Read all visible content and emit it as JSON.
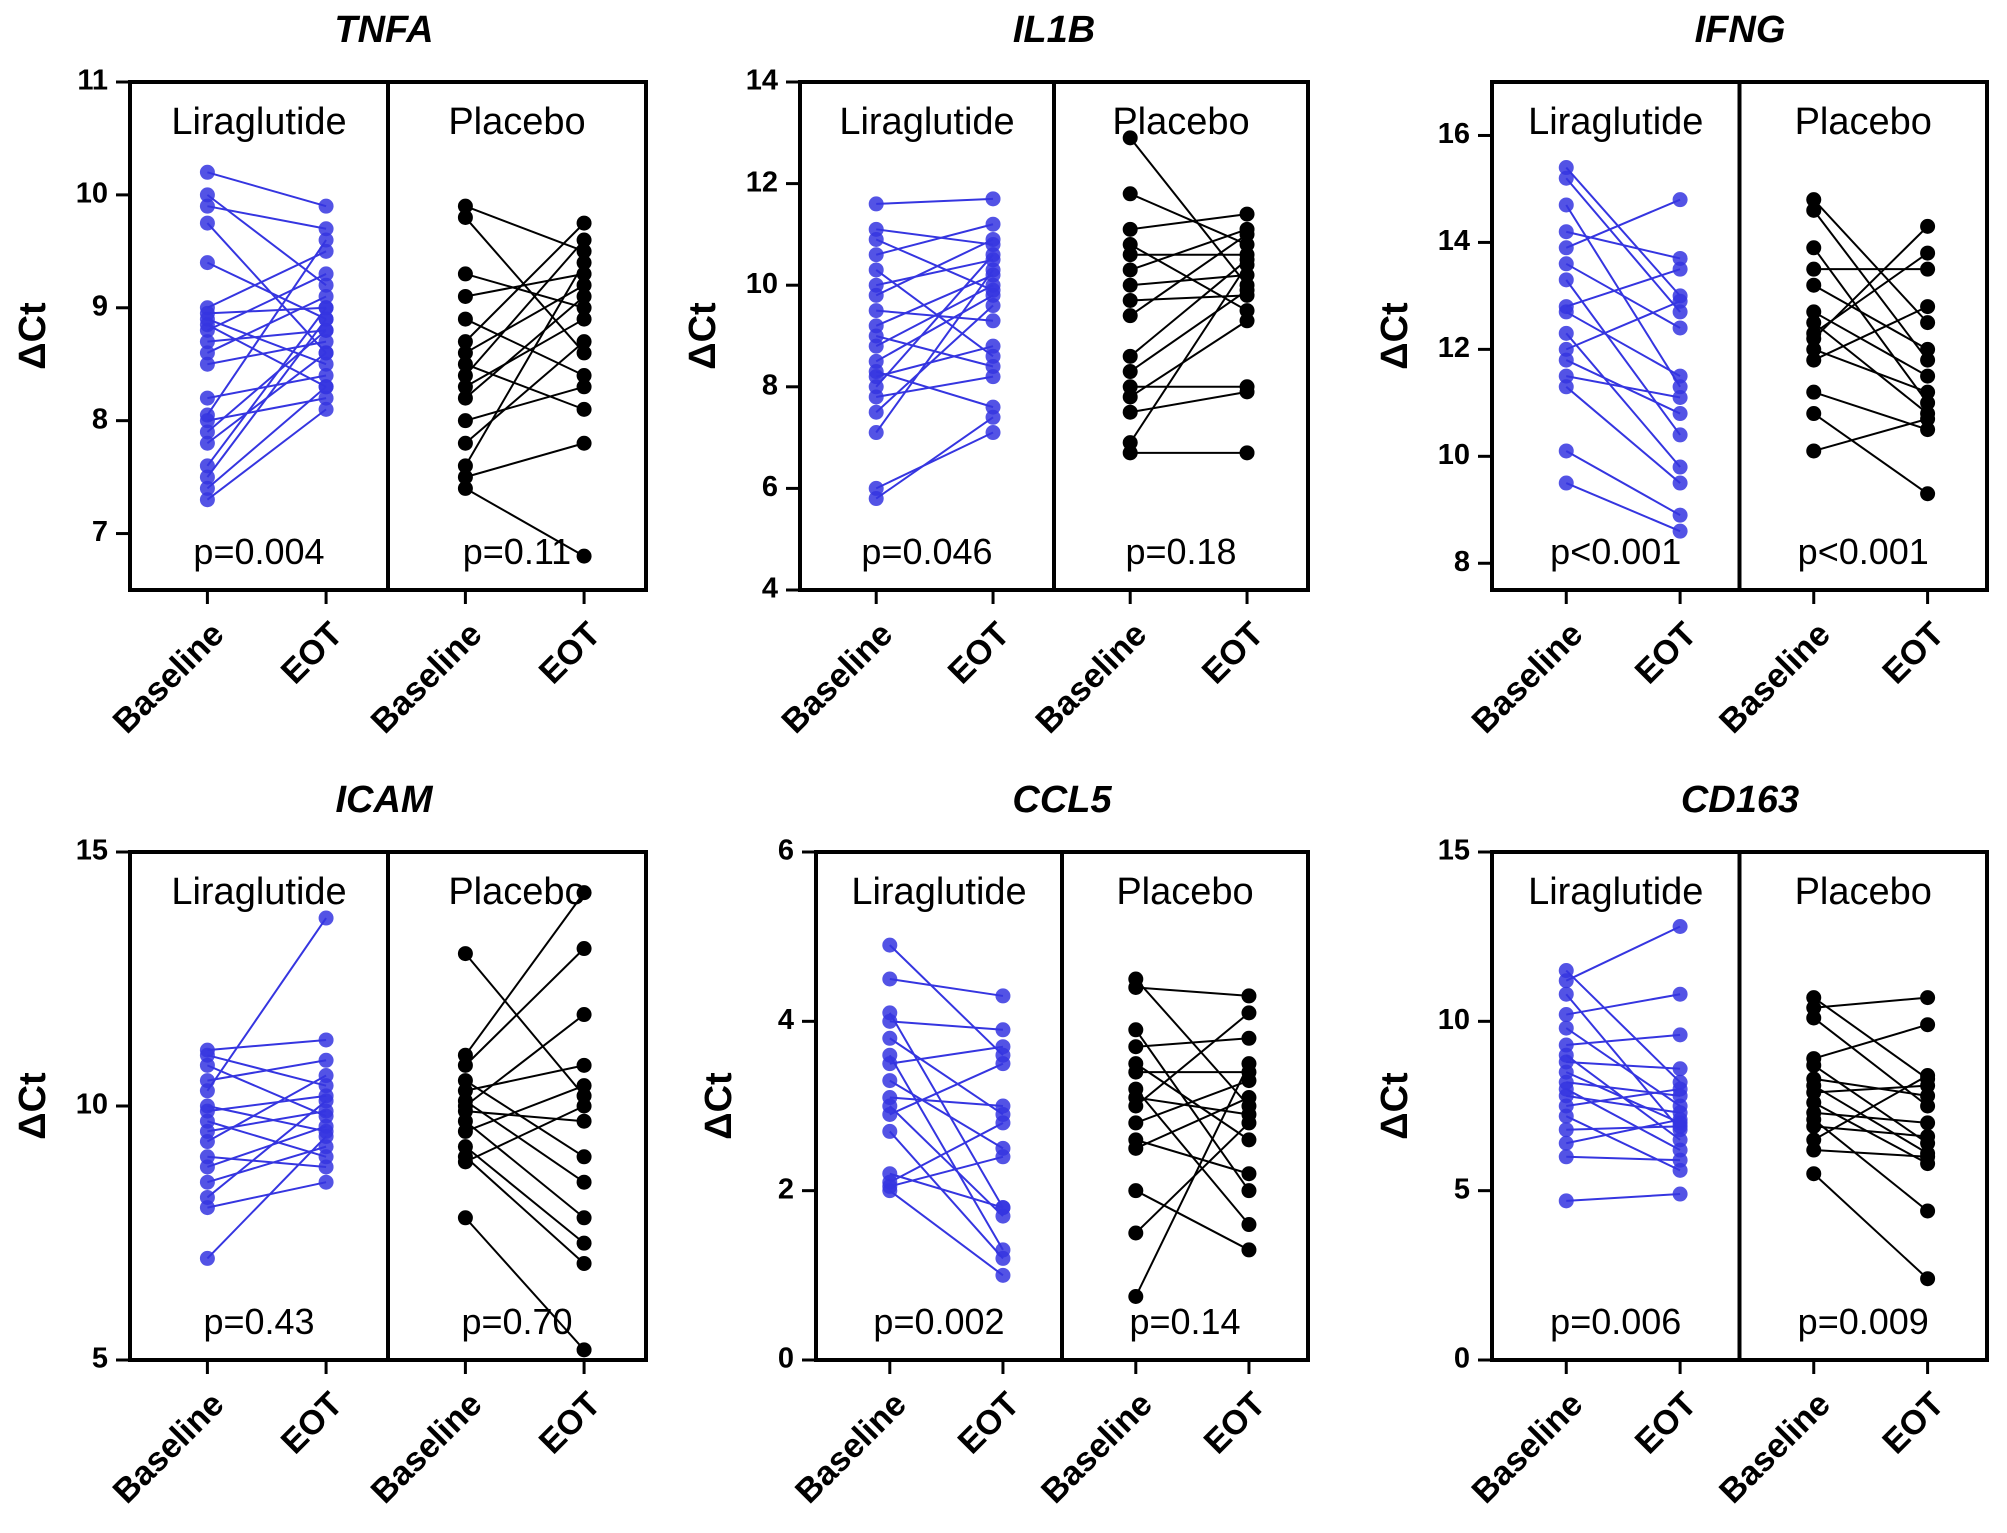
{
  "colors": {
    "liraglutide": "#3535e0",
    "placebo": "#000000",
    "frame": "#000000"
  },
  "chart_data": [
    {
      "type": "paired-dot",
      "title": "TNFA",
      "ylabel": "ΔCt",
      "ylim": [
        6.5,
        11
      ],
      "yticks": [
        "7",
        "8",
        "9",
        "10",
        "11"
      ],
      "groups": [
        {
          "name": "Liraglutide",
          "pvalue": "p=0.004",
          "xlabels": [
            "Baseline",
            "EOT"
          ],
          "pairs": [
            [
              10.2,
              9.9
            ],
            [
              10.0,
              9.2
            ],
            [
              9.9,
              9.7
            ],
            [
              9.75,
              8.6
            ],
            [
              9.4,
              8.9
            ],
            [
              9.0,
              9.5
            ],
            [
              8.95,
              9.0
            ],
            [
              8.9,
              8.5
            ],
            [
              8.85,
              8.3
            ],
            [
              8.8,
              9.3
            ],
            [
              8.7,
              8.8
            ],
            [
              8.6,
              9.1
            ],
            [
              8.5,
              8.7
            ],
            [
              8.2,
              8.4
            ],
            [
              8.05,
              9.6
            ],
            [
              8.0,
              8.2
            ],
            [
              7.9,
              8.8
            ],
            [
              7.8,
              8.6
            ],
            [
              7.6,
              9.0
            ],
            [
              7.5,
              8.9
            ],
            [
              7.4,
              8.3
            ],
            [
              7.3,
              8.1
            ]
          ]
        },
        {
          "name": "Placebo",
          "pvalue": "p=0.11",
          "xlabels": [
            "Baseline",
            "EOT"
          ],
          "pairs": [
            [
              9.9,
              9.5
            ],
            [
              9.8,
              8.6
            ],
            [
              9.3,
              9.0
            ],
            [
              9.1,
              9.3
            ],
            [
              8.9,
              8.4
            ],
            [
              8.7,
              9.75
            ],
            [
              8.6,
              9.2
            ],
            [
              8.5,
              8.1
            ],
            [
              8.4,
              9.6
            ],
            [
              8.3,
              8.9
            ],
            [
              8.2,
              9.1
            ],
            [
              8.0,
              8.3
            ],
            [
              7.8,
              8.7
            ],
            [
              7.6,
              9.4
            ],
            [
              7.5,
              7.8
            ],
            [
              7.4,
              6.8
            ]
          ]
        }
      ]
    },
    {
      "type": "paired-dot",
      "title": "IL1B",
      "ylabel": "ΔCt",
      "ylim": [
        4,
        14
      ],
      "yticks": [
        "4",
        "6",
        "8",
        "10",
        "12",
        "14"
      ],
      "groups": [
        {
          "name": "Liraglutide",
          "pvalue": "p=0.046",
          "xlabels": [
            "Baseline",
            "EOT"
          ],
          "pairs": [
            [
              11.6,
              11.7
            ],
            [
              11.1,
              10.8
            ],
            [
              10.9,
              9.9
            ],
            [
              10.6,
              11.2
            ],
            [
              10.3,
              8.6
            ],
            [
              10.0,
              10.5
            ],
            [
              9.8,
              10.9
            ],
            [
              9.5,
              9.3
            ],
            [
              9.2,
              10.2
            ],
            [
              9.0,
              8.4
            ],
            [
              8.8,
              10.0
            ],
            [
              8.5,
              9.8
            ],
            [
              8.3,
              7.6
            ],
            [
              8.2,
              8.8
            ],
            [
              8.0,
              10.6
            ],
            [
              7.8,
              8.2
            ],
            [
              7.5,
              9.6
            ],
            [
              7.1,
              10.3
            ],
            [
              6.0,
              7.1
            ],
            [
              5.8,
              7.4
            ]
          ]
        },
        {
          "name": "Placebo",
          "pvalue": "p=0.18",
          "xlabels": [
            "Baseline",
            "EOT"
          ],
          "pairs": [
            [
              12.9,
              10.0
            ],
            [
              11.8,
              10.8
            ],
            [
              11.1,
              11.4
            ],
            [
              10.8,
              9.5
            ],
            [
              10.6,
              10.6
            ],
            [
              10.3,
              11.1
            ],
            [
              10.0,
              10.2
            ],
            [
              9.7,
              9.8
            ],
            [
              9.4,
              11.0
            ],
            [
              8.6,
              10.5
            ],
            [
              8.3,
              9.9
            ],
            [
              8.0,
              8.0
            ],
            [
              7.8,
              9.3
            ],
            [
              7.5,
              7.9
            ],
            [
              6.9,
              10.4
            ],
            [
              6.7,
              6.7
            ]
          ]
        }
      ]
    },
    {
      "type": "paired-dot",
      "title": "IFNG",
      "ylabel": "ΔCt",
      "ylim": [
        7.5,
        17
      ],
      "yticks": [
        "8",
        "10",
        "12",
        "14",
        "16"
      ],
      "groups": [
        {
          "name": "Liraglutide",
          "pvalue": "p<0.001",
          "xlabels": [
            "Baseline",
            "EOT"
          ],
          "pairs": [
            [
              15.4,
              13.0
            ],
            [
              15.2,
              12.7
            ],
            [
              14.7,
              11.3
            ],
            [
              13.9,
              14.8
            ],
            [
              13.6,
              12.4
            ],
            [
              13.3,
              10.4
            ],
            [
              12.8,
              13.5
            ],
            [
              12.7,
              11.5
            ],
            [
              12.3,
              9.8
            ],
            [
              12.0,
              12.9
            ],
            [
              11.8,
              10.8
            ],
            [
              11.5,
              11.1
            ],
            [
              11.3,
              9.5
            ],
            [
              10.1,
              8.9
            ],
            [
              9.5,
              8.6
            ],
            [
              14.2,
              13.7
            ]
          ]
        },
        {
          "name": "Placebo",
          "pvalue": "p<0.001",
          "xlabels": [
            "Baseline",
            "EOT"
          ],
          "pairs": [
            [
              14.8,
              12.5
            ],
            [
              14.6,
              11.8
            ],
            [
              13.9,
              11.0
            ],
            [
              13.5,
              13.5
            ],
            [
              13.2,
              12.0
            ],
            [
              12.7,
              11.5
            ],
            [
              12.5,
              10.8
            ],
            [
              12.3,
              13.8
            ],
            [
              12.0,
              11.2
            ],
            [
              11.8,
              12.8
            ],
            [
              11.2,
              10.5
            ],
            [
              10.8,
              9.3
            ],
            [
              10.1,
              10.7
            ],
            [
              12.2,
              14.3
            ]
          ]
        }
      ]
    },
    {
      "type": "paired-dot",
      "title": "ICAM",
      "ylabel": "ΔCt",
      "ylim": [
        5,
        15
      ],
      "yticks": [
        "5",
        "10",
        "15"
      ],
      "groups": [
        {
          "name": "Liraglutide",
          "pvalue": "p=0.43",
          "xlabels": [
            "Baseline",
            "EOT"
          ],
          "pairs": [
            [
              11.1,
              11.3
            ],
            [
              11.0,
              10.4
            ],
            [
              10.8,
              9.8
            ],
            [
              10.5,
              10.9
            ],
            [
              10.3,
              13.7
            ],
            [
              10.0,
              9.5
            ],
            [
              9.9,
              10.2
            ],
            [
              9.7,
              9.0
            ],
            [
              9.5,
              9.9
            ],
            [
              9.3,
              10.6
            ],
            [
              9.0,
              8.8
            ],
            [
              8.8,
              9.6
            ],
            [
              8.5,
              9.2
            ],
            [
              8.2,
              10.1
            ],
            [
              8.0,
              8.5
            ],
            [
              7.0,
              9.4
            ]
          ]
        },
        {
          "name": "Placebo",
          "pvalue": "p=0.70",
          "xlabels": [
            "Baseline",
            "EOT"
          ],
          "pairs": [
            [
              13.0,
              10.2
            ],
            [
              11.0,
              14.2
            ],
            [
              10.8,
              13.1
            ],
            [
              10.5,
              9.0
            ],
            [
              10.3,
              10.8
            ],
            [
              10.1,
              8.5
            ],
            [
              10.0,
              11.8
            ],
            [
              9.9,
              9.7
            ],
            [
              9.7,
              7.8
            ],
            [
              9.5,
              10.4
            ],
            [
              9.2,
              7.3
            ],
            [
              9.0,
              6.9
            ],
            [
              8.9,
              10.0
            ],
            [
              7.8,
              5.2
            ]
          ]
        }
      ]
    },
    {
      "type": "paired-dot",
      "title": "CCL5",
      "ylabel": "ΔCt",
      "ylim": [
        0,
        6
      ],
      "yticks": [
        "0",
        "2",
        "4",
        "6"
      ],
      "groups": [
        {
          "name": "Liraglutide",
          "pvalue": "p=0.002",
          "xlabels": [
            "Baseline",
            "EOT"
          ],
          "pairs": [
            [
              4.9,
              3.6
            ],
            [
              4.5,
              4.3
            ],
            [
              4.1,
              1.8
            ],
            [
              4.0,
              3.9
            ],
            [
              3.8,
              2.9
            ],
            [
              3.6,
              1.3
            ],
            [
              3.5,
              3.7
            ],
            [
              3.3,
              2.5
            ],
            [
              3.1,
              3.0
            ],
            [
              3.0,
              1.7
            ],
            [
              2.9,
              3.5
            ],
            [
              2.7,
              1.2
            ],
            [
              2.2,
              1.8
            ],
            [
              2.1,
              2.8
            ],
            [
              2.0,
              1.0
            ],
            [
              2.05,
              2.4
            ]
          ]
        },
        {
          "name": "Placebo",
          "pvalue": "p=0.14",
          "xlabels": [
            "Baseline",
            "EOT"
          ],
          "pairs": [
            [
              4.5,
              3.0
            ],
            [
              4.4,
              4.3
            ],
            [
              3.9,
              2.0
            ],
            [
              3.7,
              3.8
            ],
            [
              3.5,
              2.6
            ],
            [
              3.4,
              3.4
            ],
            [
              3.2,
              1.6
            ],
            [
              3.1,
              2.9
            ],
            [
              3.0,
              4.1
            ],
            [
              2.8,
              3.3
            ],
            [
              2.6,
              2.2
            ],
            [
              2.5,
              3.1
            ],
            [
              2.0,
              1.3
            ],
            [
              1.5,
              2.8
            ],
            [
              0.75,
              3.5
            ]
          ]
        }
      ]
    },
    {
      "type": "paired-dot",
      "title": "CD163",
      "ylabel": "ΔCt",
      "ylim": [
        0,
        15
      ],
      "yticks": [
        "0",
        "5",
        "10",
        "15"
      ],
      "groups": [
        {
          "name": "Liraglutide",
          "pvalue": "p=0.006",
          "xlabels": [
            "Baseline",
            "EOT"
          ],
          "pairs": [
            [
              11.5,
              8.2
            ],
            [
              11.2,
              12.8
            ],
            [
              10.8,
              6.8
            ],
            [
              10.2,
              10.8
            ],
            [
              9.8,
              7.5
            ],
            [
              9.3,
              9.6
            ],
            [
              9.0,
              6.5
            ],
            [
              8.8,
              8.6
            ],
            [
              8.5,
              7.0
            ],
            [
              8.2,
              7.8
            ],
            [
              8.0,
              6.2
            ],
            [
              7.8,
              7.3
            ],
            [
              7.5,
              8.0
            ],
            [
              7.2,
              5.6
            ],
            [
              6.8,
              6.9
            ],
            [
              6.4,
              7.1
            ],
            [
              6.0,
              5.9
            ],
            [
              4.7,
              4.9
            ]
          ]
        },
        {
          "name": "Placebo",
          "pvalue": "p=0.009",
          "xlabels": [
            "Baseline",
            "EOT"
          ],
          "pairs": [
            [
              10.7,
              8.3
            ],
            [
              10.4,
              10.7
            ],
            [
              10.1,
              7.5
            ],
            [
              8.9,
              9.9
            ],
            [
              8.7,
              6.4
            ],
            [
              8.3,
              7.8
            ],
            [
              8.1,
              6.1
            ],
            [
              7.9,
              8.1
            ],
            [
              7.6,
              5.8
            ],
            [
              7.3,
              7.0
            ],
            [
              7.1,
              4.4
            ],
            [
              6.9,
              6.6
            ],
            [
              6.5,
              8.4
            ],
            [
              6.2,
              6.0
            ],
            [
              5.5,
              2.4
            ]
          ]
        }
      ]
    }
  ]
}
